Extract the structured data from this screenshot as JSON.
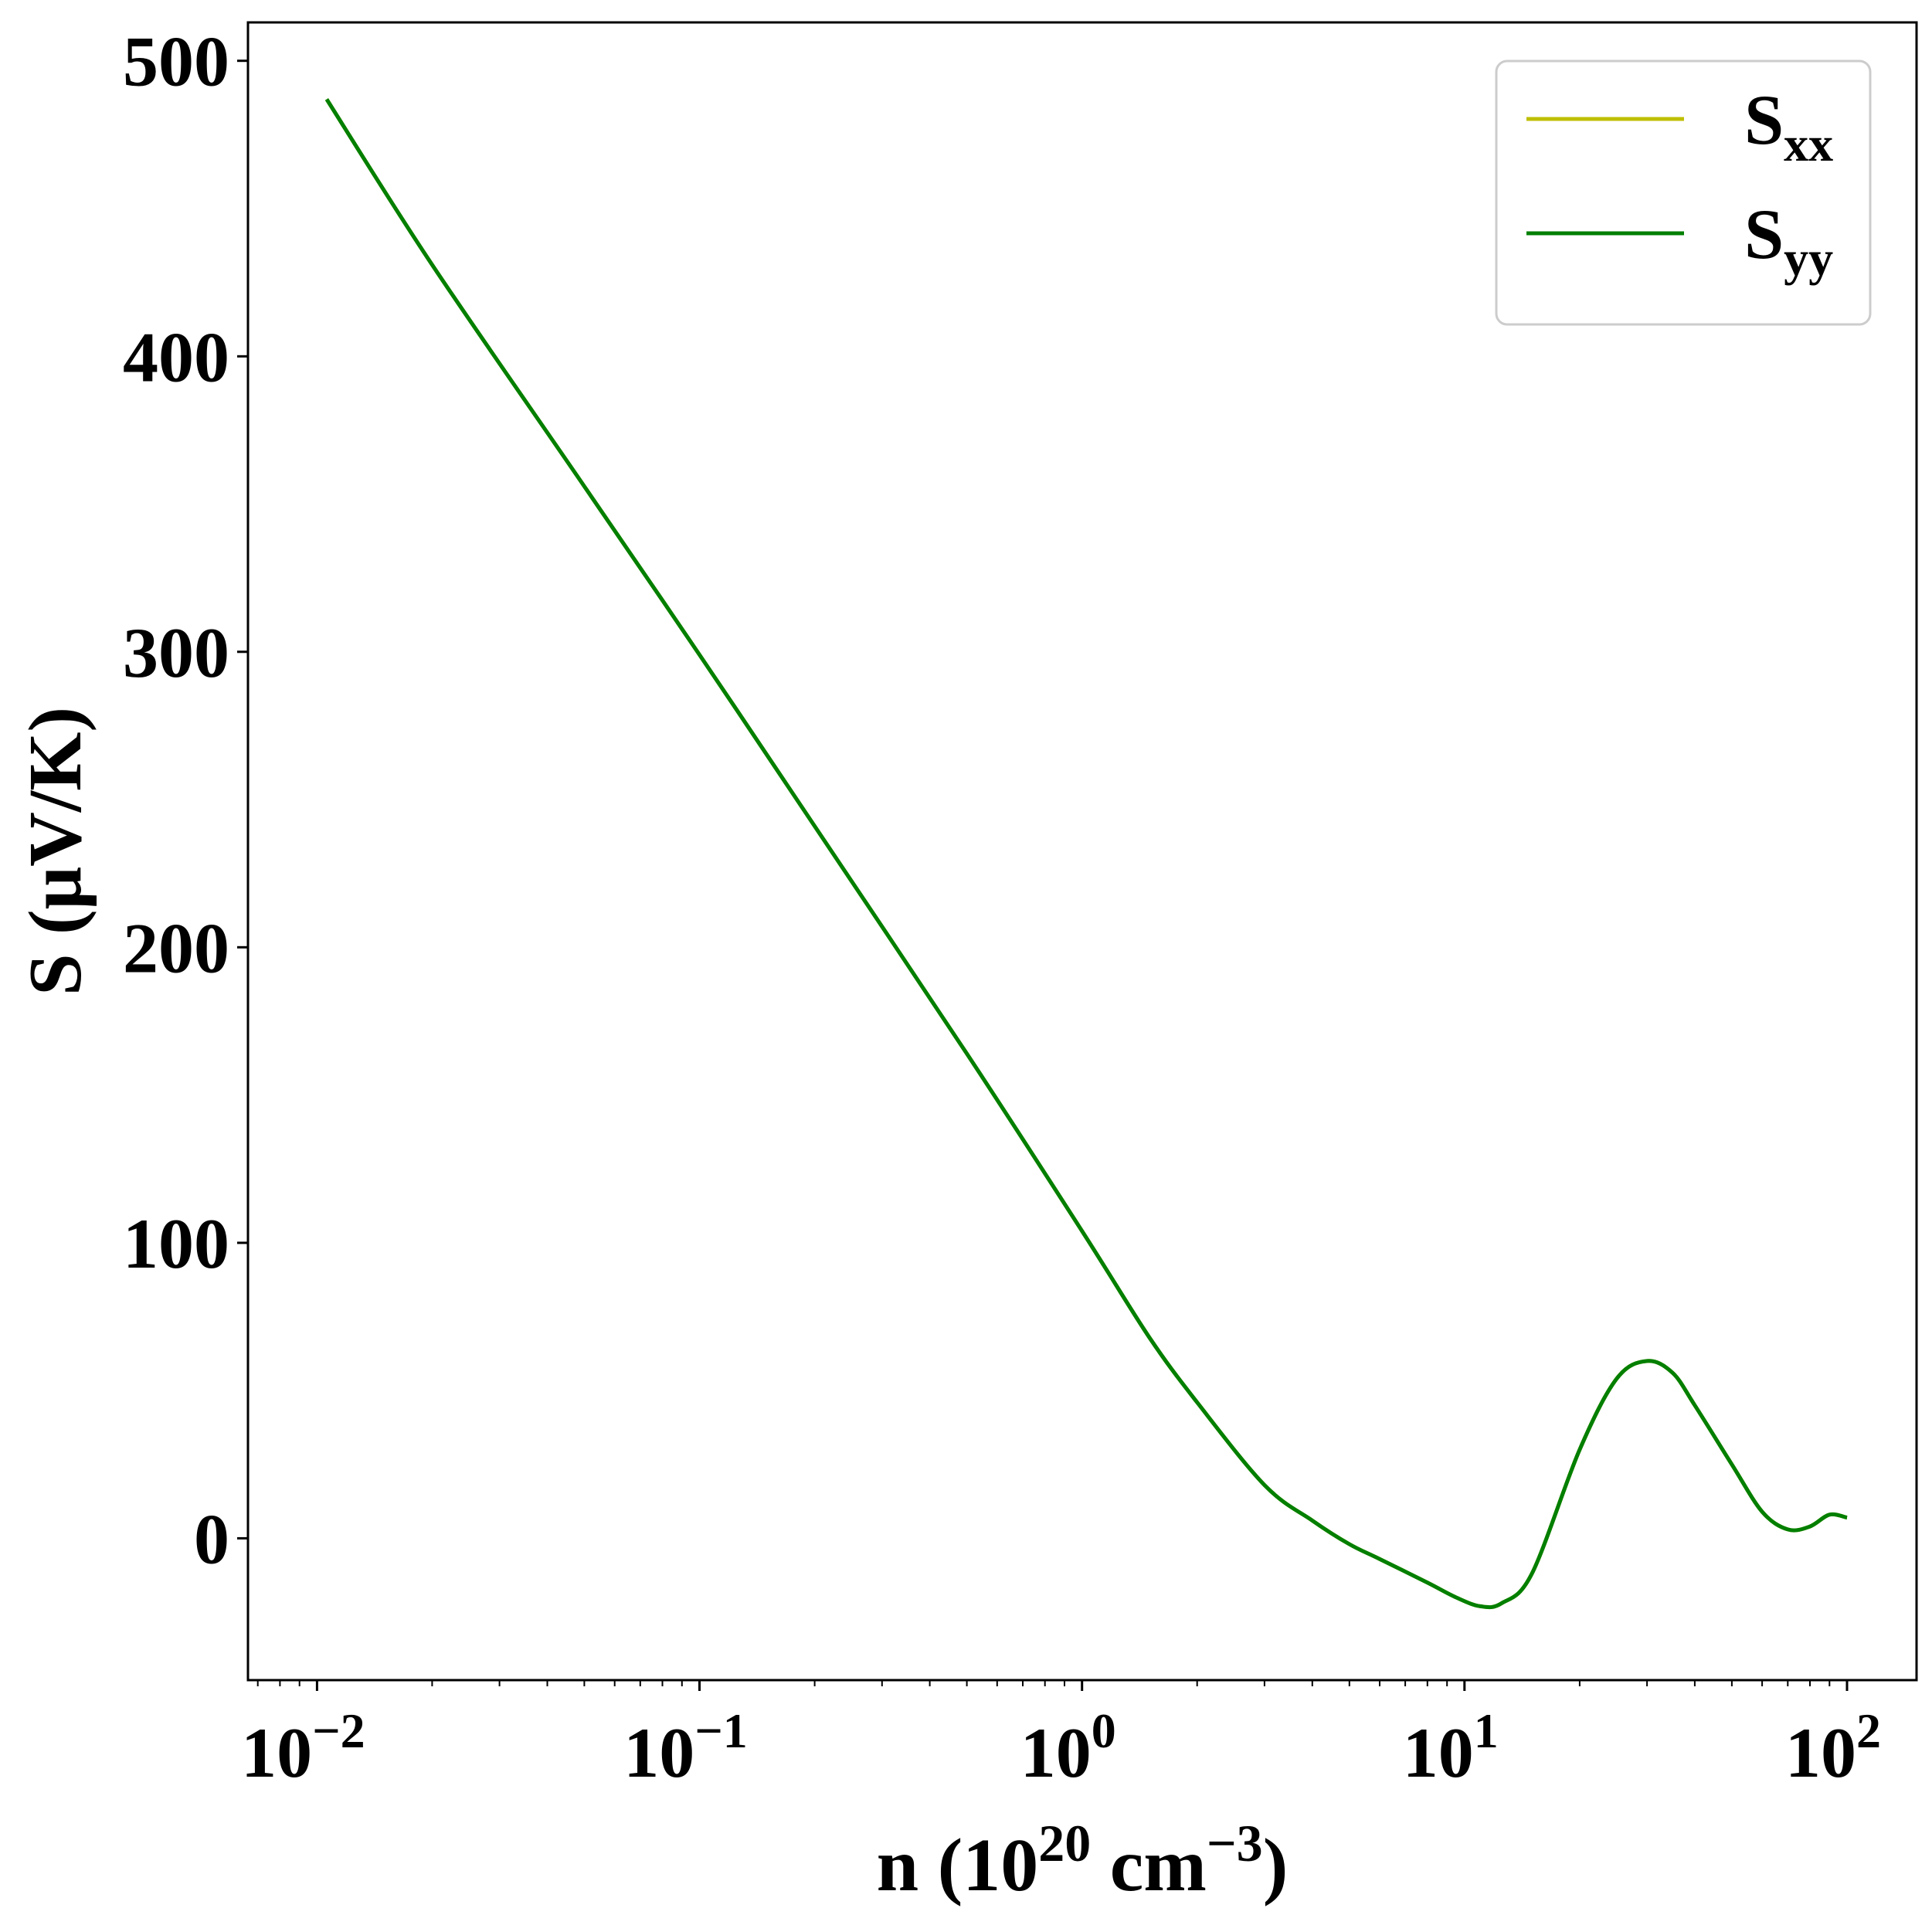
{
  "chart_data": {
    "type": "line",
    "title": "",
    "xlabel": {
      "base": "n (10",
      "exp1": "20",
      "mid": " cm",
      "exp2": "−3",
      "end": ")"
    },
    "ylabel": "S (μV/K)",
    "xscale": "log",
    "xlim": [
      0.0066,
      152
    ],
    "ylim": [
      -48,
      513
    ],
    "x_ticks": [
      {
        "value": 0.01,
        "base": "10",
        "exp": "−2"
      },
      {
        "value": 0.1,
        "base": "10",
        "exp": "−1"
      },
      {
        "value": 1,
        "base": "10",
        "exp": "0"
      },
      {
        "value": 10,
        "base": "10",
        "exp": "1"
      },
      {
        "value": 100,
        "base": "10",
        "exp": "2"
      }
    ],
    "y_ticks": [
      {
        "value": 0,
        "label": "0"
      },
      {
        "value": 100,
        "label": "100"
      },
      {
        "value": 200,
        "label": "200"
      },
      {
        "value": 300,
        "label": "300"
      },
      {
        "value": 400,
        "label": "400"
      },
      {
        "value": 500,
        "label": "500"
      }
    ],
    "grid": false,
    "legend_position": "top-right",
    "series": [
      {
        "name": "S_xx",
        "legend_base": "S",
        "legend_sub": "xx",
        "color": "#bfbf00",
        "x": [
          0.0106,
          0.02,
          0.05,
          0.1,
          0.2,
          0.5,
          1,
          1.5,
          2,
          3,
          4,
          5,
          6,
          8,
          9.5,
          11,
          12.5,
          15,
          20,
          25,
          30,
          35,
          40,
          50,
          60,
          70,
          80,
          90,
          100
        ],
        "y": [
          487,
          431,
          356,
          299,
          241,
          164,
          104,
          68,
          46,
          18,
          6,
          -2,
          -7,
          -15,
          -20,
          -23,
          -22,
          -12,
          30,
          54,
          60,
          56,
          45,
          25,
          9,
          3,
          4,
          8,
          7
        ]
      },
      {
        "name": "S_yy",
        "legend_base": "S",
        "legend_sub": "yy",
        "color": "#007f00",
        "x": [
          0.0106,
          0.02,
          0.05,
          0.1,
          0.2,
          0.5,
          1,
          1.5,
          2,
          3,
          4,
          5,
          6,
          8,
          9.5,
          11,
          12.5,
          15,
          20,
          25,
          30,
          35,
          40,
          50,
          60,
          70,
          80,
          90,
          100
        ],
        "y": [
          487,
          431,
          356,
          299,
          241,
          164,
          104,
          68,
          46,
          18,
          6,
          -2,
          -7,
          -15,
          -20,
          -23,
          -22,
          -12,
          30,
          54,
          60,
          56,
          45,
          25,
          9,
          3,
          4,
          8,
          7
        ]
      }
    ]
  }
}
